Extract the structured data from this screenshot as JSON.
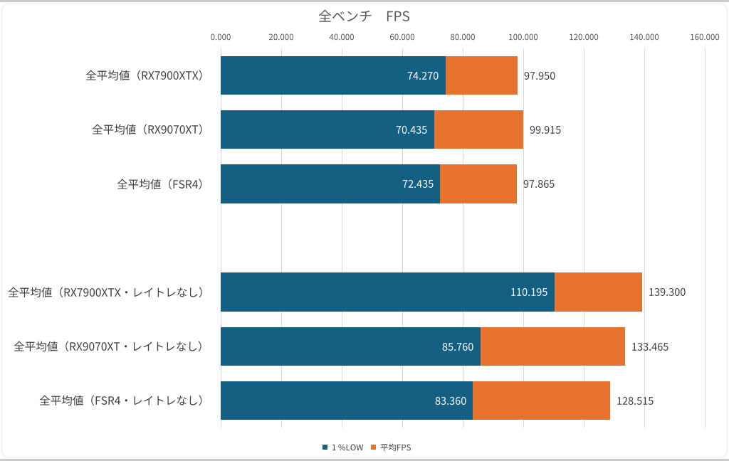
{
  "page": {
    "background": "#ffffff",
    "top_edge_color": "#cbcbcb",
    "bottom_edge_color": "#cbcbcb",
    "frame_border_color": "#ececec"
  },
  "chart_data": {
    "type": "bar",
    "orientation": "horizontal",
    "stacked": true,
    "title": "全ベンチ　FPS",
    "categories": [
      "全平均値（RX7900XTX）",
      "全平均値（RX9070XT）",
      "全平均値（FSR4）",
      "",
      "全平均値（RX7900XTX・レイトレなし）",
      "全平均値（RX9070XT・レイトレなし）",
      "全平均値（FSR4・レイトレなし）"
    ],
    "series": [
      {
        "name": "1 %LOW",
        "color": "#155f82",
        "values": [
          74.27,
          70.435,
          72.435,
          null,
          110.195,
          85.76,
          83.36
        ],
        "value_labels": [
          "74.270",
          "70.435",
          "72.435",
          "",
          "110.195",
          "85.760",
          "83.360"
        ]
      },
      {
        "name": "平均FPS",
        "color": "#e7722e",
        "values": [
          97.95,
          99.915,
          97.865,
          null,
          139.3,
          133.465,
          128.515
        ],
        "value_labels": [
          "97.950",
          "99.915",
          "97.865",
          "",
          "139.300",
          "133.465",
          "128.515"
        ]
      }
    ],
    "series_note": "平均FPS values are stacked-bar totals; the orange segment spans from the 1 %LOW value to the 平均FPS value",
    "xlabel": "",
    "ylabel": "",
    "xlim": [
      0,
      160
    ],
    "xtick_step": 20,
    "xtick_labels": [
      "0.000",
      "20.000",
      "40.000",
      "60.000",
      "80.000",
      "100.000",
      "120.000",
      "140.000",
      "160.000"
    ],
    "grid": true,
    "legend_position": "bottom",
    "colors": {
      "low_series": "#155f82",
      "avg_series": "#e7722e",
      "gridline": "#d9d9d9",
      "title_text": "#595959",
      "axis_tick_text": "#595959",
      "category_text": "#404040",
      "outside_label_text": "#404040",
      "inside_label_text": "#ffffff",
      "legend_text": "#404040"
    }
  }
}
